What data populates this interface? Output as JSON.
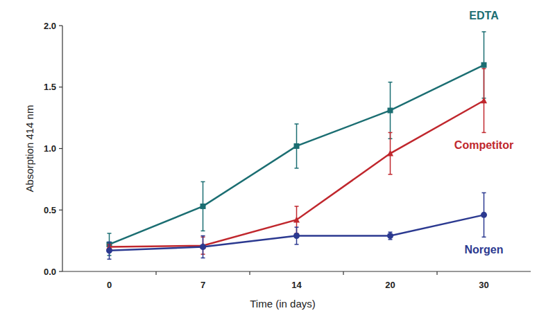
{
  "chart_data": {
    "type": "line",
    "x_label": "Time (in days)",
    "y_label": "Absorption 414 nm",
    "categories": [
      "0",
      "7",
      "14",
      "20",
      "30"
    ],
    "ylim": [
      0,
      2
    ],
    "yticks": [
      {
        "value": 0,
        "label": "0.0"
      },
      {
        "value": 0.5,
        "label": "0.5"
      },
      {
        "value": 1,
        "label": "1.0"
      },
      {
        "value": 1.5,
        "label": "1.5"
      },
      {
        "value": 2,
        "label": "2.0"
      }
    ],
    "grid": false,
    "series": [
      {
        "name": "EDTA",
        "color": "#1b6e72",
        "marker": "square",
        "values": [
          0.22,
          0.53,
          1.02,
          1.31,
          1.68
        ],
        "errors": [
          0.09,
          0.2,
          0.18,
          0.23,
          0.27
        ]
      },
      {
        "name": "Competitor",
        "color": "#c0272d",
        "marker": "triangle",
        "values": [
          0.2,
          0.21,
          0.42,
          0.96,
          1.39
        ],
        "errors": [
          0.02,
          0.07,
          0.11,
          0.17,
          0.26
        ]
      },
      {
        "name": "Norgen",
        "color": "#2b3990",
        "marker": "circle",
        "values": [
          0.17,
          0.2,
          0.29,
          0.29,
          0.46
        ],
        "errors": [
          0.07,
          0.09,
          0.07,
          0.03,
          0.18
        ]
      }
    ]
  }
}
